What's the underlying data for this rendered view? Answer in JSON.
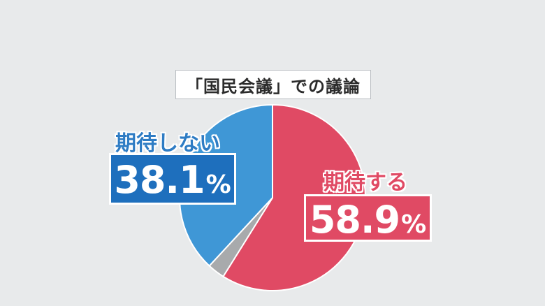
{
  "chart_data": {
    "type": "pie",
    "title": "「国民会議」での議論",
    "slices": [
      {
        "label": "期待する",
        "value": 58.9,
        "color": "#e04a64"
      },
      {
        "label": "",
        "value": 3.0,
        "color": "#a8aaac"
      },
      {
        "label": "期待しない",
        "value": 38.1,
        "color": "#3f97d6"
      }
    ],
    "labels": {
      "positive_name": "期待する",
      "positive_value": "58.9",
      "negative_name": "期待しない",
      "negative_value": "38.1",
      "unit": "%"
    }
  },
  "colors": {
    "background": "#e8eaeb",
    "positive": "#e04a64",
    "negative": "#3f97d6",
    "negative_box": "#1e6fbd",
    "other": "#a8aaac"
  }
}
